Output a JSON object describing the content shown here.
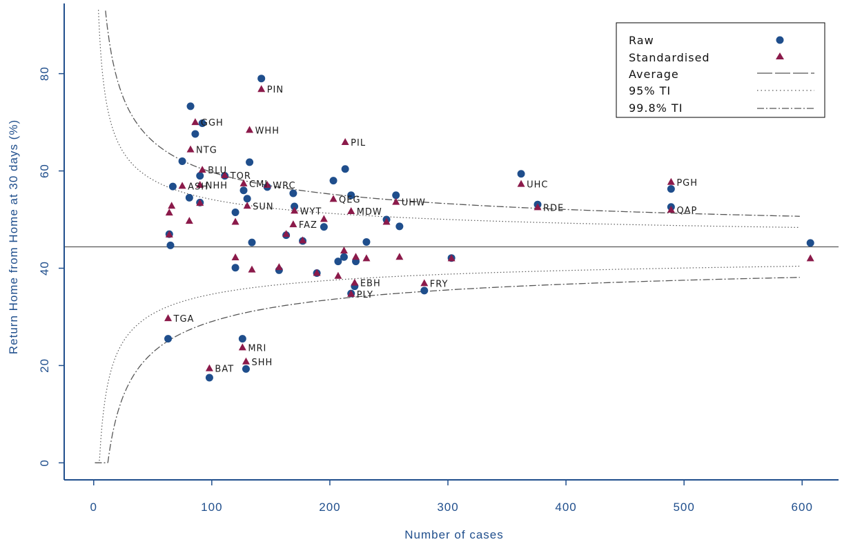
{
  "chart_data": {
    "type": "scatter",
    "xlabel": "Number of cases",
    "ylabel": "Return Home from Home at 30 days (%)",
    "xlim": [
      -25,
      625
    ],
    "ylim": [
      -3.5,
      94
    ],
    "x_ticks": [
      0,
      100,
      200,
      300,
      400,
      500,
      600
    ],
    "y_ticks": [
      0,
      20,
      40,
      60,
      80
    ],
    "average": 44.4,
    "curve_x_max": 600,
    "legend": {
      "position": "top-right",
      "entries": [
        {
          "label": "Raw",
          "key": "raw"
        },
        {
          "label": "Standardised",
          "key": "std"
        },
        {
          "label": "Average",
          "key": "avg"
        },
        {
          "label": "95% TI",
          "key": "ti95"
        },
        {
          "label": "99.8% TI",
          "key": "ti998"
        }
      ]
    },
    "colors": {
      "axis": "#1f4e8c",
      "tick_text": "#1f4e8c",
      "raw": "#1f4e8c",
      "standardised": "#8b1a4a",
      "lines": "#555555"
    },
    "raw_points": [
      {
        "x": 63,
        "y": 25.5
      },
      {
        "x": 64,
        "y": 47
      },
      {
        "x": 65,
        "y": 44.7
      },
      {
        "x": 67,
        "y": 56.8
      },
      {
        "x": 75,
        "y": 62
      },
      {
        "x": 81,
        "y": 54.5
      },
      {
        "x": 82,
        "y": 73.3
      },
      {
        "x": 86,
        "y": 67.6
      },
      {
        "x": 90,
        "y": 59
      },
      {
        "x": 90,
        "y": 53.5
      },
      {
        "x": 92,
        "y": 69.8
      },
      {
        "x": 98,
        "y": 17.5
      },
      {
        "x": 111,
        "y": 59
      },
      {
        "x": 120,
        "y": 51.5
      },
      {
        "x": 120,
        "y": 40.1
      },
      {
        "x": 126,
        "y": 25.5
      },
      {
        "x": 127,
        "y": 56
      },
      {
        "x": 129,
        "y": 19.3
      },
      {
        "x": 130,
        "y": 54.3
      },
      {
        "x": 132,
        "y": 61.8
      },
      {
        "x": 134,
        "y": 45.3
      },
      {
        "x": 142,
        "y": 79
      },
      {
        "x": 147,
        "y": 56.7
      },
      {
        "x": 157,
        "y": 39.6
      },
      {
        "x": 163,
        "y": 46.8
      },
      {
        "x": 169,
        "y": 55.4
      },
      {
        "x": 170,
        "y": 52.7
      },
      {
        "x": 177,
        "y": 45.6
      },
      {
        "x": 189,
        "y": 39
      },
      {
        "x": 195,
        "y": 48.5
      },
      {
        "x": 203,
        "y": 58
      },
      {
        "x": 207,
        "y": 41.4
      },
      {
        "x": 212,
        "y": 42.3
      },
      {
        "x": 213,
        "y": 60.4
      },
      {
        "x": 218,
        "y": 55
      },
      {
        "x": 218,
        "y": 34.8
      },
      {
        "x": 221,
        "y": 36.3
      },
      {
        "x": 222,
        "y": 41.4
      },
      {
        "x": 231,
        "y": 45.4
      },
      {
        "x": 248,
        "y": 50
      },
      {
        "x": 256,
        "y": 55
      },
      {
        "x": 259,
        "y": 48.6
      },
      {
        "x": 303,
        "y": 42.1
      },
      {
        "x": 280,
        "y": 35.4
      },
      {
        "x": 362,
        "y": 59.4
      },
      {
        "x": 376,
        "y": 53.1
      },
      {
        "x": 489,
        "y": 56.3
      },
      {
        "x": 489,
        "y": 52.6
      },
      {
        "x": 607,
        "y": 45.2
      }
    ],
    "standardised_points": [
      {
        "x": 63,
        "y": 29.7,
        "label": "TGA"
      },
      {
        "x": 64,
        "y": 51.4
      },
      {
        "x": 64,
        "y": 46.9
      },
      {
        "x": 66,
        "y": 52.8
      },
      {
        "x": 75,
        "y": 56.9,
        "label": "ASH"
      },
      {
        "x": 81,
        "y": 49.7
      },
      {
        "x": 82,
        "y": 64.4,
        "label": "NTG"
      },
      {
        "x": 86,
        "y": 70,
        "label": "GGH"
      },
      {
        "x": 90,
        "y": 57.1,
        "label": "NHH"
      },
      {
        "x": 90,
        "y": 53.4
      },
      {
        "x": 92,
        "y": 60.2,
        "label": "BLU"
      },
      {
        "x": 98,
        "y": 19.4,
        "label": "BAT"
      },
      {
        "x": 111,
        "y": 59.1,
        "label": "TOR"
      },
      {
        "x": 120,
        "y": 49.5
      },
      {
        "x": 120,
        "y": 42.2
      },
      {
        "x": 126,
        "y": 23.7,
        "label": "MRI"
      },
      {
        "x": 127,
        "y": 57.4,
        "label": "CMI"
      },
      {
        "x": 129,
        "y": 20.8,
        "label": "SHH"
      },
      {
        "x": 130,
        "y": 52.8,
        "label": "SUN"
      },
      {
        "x": 132,
        "y": 68.4,
        "label": "WHH"
      },
      {
        "x": 134,
        "y": 39.7
      },
      {
        "x": 142,
        "y": 76.8,
        "label": "PIN"
      },
      {
        "x": 147,
        "y": 57.1,
        "label": "WRC"
      },
      {
        "x": 157,
        "y": 40.2
      },
      {
        "x": 163,
        "y": 47
      },
      {
        "x": 169,
        "y": 49,
        "label": "FAZ"
      },
      {
        "x": 170,
        "y": 51.8,
        "label": "WYT"
      },
      {
        "x": 177,
        "y": 45.7
      },
      {
        "x": 189,
        "y": 39
      },
      {
        "x": 195,
        "y": 50.1
      },
      {
        "x": 203,
        "y": 54.2,
        "label": "QEG"
      },
      {
        "x": 207,
        "y": 38.4
      },
      {
        "x": 212,
        "y": 43.6
      },
      {
        "x": 213,
        "y": 65.9,
        "label": "PIL"
      },
      {
        "x": 218,
        "y": 51.7,
        "label": "MDW"
      },
      {
        "x": 218,
        "y": 34.7,
        "label": "PLY"
      },
      {
        "x": 221,
        "y": 37,
        "label": "EBH"
      },
      {
        "x": 222,
        "y": 42.3
      },
      {
        "x": 231,
        "y": 42
      },
      {
        "x": 248,
        "y": 49.5
      },
      {
        "x": 256,
        "y": 53.6,
        "label": "UHW"
      },
      {
        "x": 259,
        "y": 42.3
      },
      {
        "x": 303,
        "y": 42
      },
      {
        "x": 280,
        "y": 36.9,
        "label": "FRY"
      },
      {
        "x": 362,
        "y": 57.3,
        "label": "UHC"
      },
      {
        "x": 376,
        "y": 52.5,
        "label": "RDE"
      },
      {
        "x": 489,
        "y": 57.7,
        "label": "PGH"
      },
      {
        "x": 489,
        "y": 52,
        "label": "QAP"
      },
      {
        "x": 607,
        "y": 42
      }
    ]
  }
}
